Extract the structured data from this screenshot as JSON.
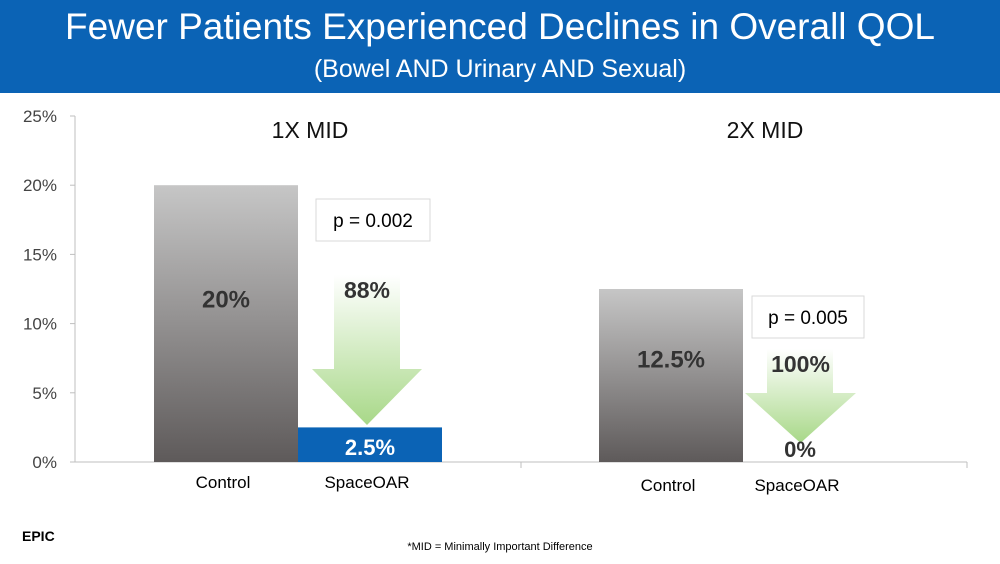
{
  "header": {
    "title": "Fewer Patients Experienced Declines in Overall QOL",
    "subtitle": "(Bowel AND Urinary AND Sexual)"
  },
  "footer": {
    "source": "EPIC",
    "footnote": "*MID = Minimally Important Difference"
  },
  "colors": {
    "header": "#0b63b5",
    "control_bar_top": "#c6c6c6",
    "control_bar_bottom": "#5e5a5a",
    "spaceoar_bar": "#0b63b5",
    "arrow_top": "#ffffff",
    "arrow_bottom": "#a8d888"
  },
  "chart_data": {
    "type": "bar",
    "ylim": [
      0,
      25
    ],
    "yticks": [
      "0%",
      "5%",
      "10%",
      "15%",
      "20%",
      "25%"
    ],
    "ytick_values": [
      0,
      5,
      10,
      15,
      20,
      25
    ],
    "categories": [
      "Control",
      "SpaceOAR"
    ],
    "groups": [
      {
        "name": "1X MID",
        "values": [
          20,
          2.5
        ],
        "value_labels": [
          "20%",
          "2.5%"
        ],
        "p_value": "p = 0.002",
        "reduction": "88%"
      },
      {
        "name": "2X MID",
        "values": [
          12.5,
          0
        ],
        "value_labels": [
          "12.5%",
          "0%"
        ],
        "p_value": "p = 0.005",
        "reduction": "100%"
      }
    ]
  }
}
